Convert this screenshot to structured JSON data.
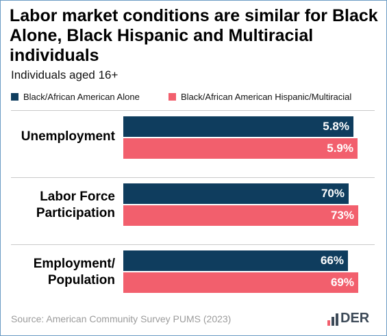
{
  "title": "Labor market conditions are similar for Black Alone, Black Hispanic and Multiracial individuals",
  "subtitle": "Individuals aged 16+",
  "source": "Source: American Community Survey PUMS (2023)",
  "logo": {
    "text": "DER",
    "icon": "bar-chart-icon",
    "color": "#3d4a58"
  },
  "colors": {
    "series1": "#0f3d5e",
    "series2": "#f25f6d"
  },
  "chart_data": {
    "type": "bar",
    "orientation": "horizontal",
    "categories": [
      "Unemployment",
      "Labor Force Participation",
      "Employment/ Population"
    ],
    "series": [
      {
        "name": "Black/African American Alone",
        "values": [
          5.8,
          70,
          66
        ],
        "labels": [
          "5.8%",
          "70%",
          "66%"
        ]
      },
      {
        "name": "Black/African American Hispanic/Multiracial",
        "values": [
          5.9,
          73,
          69
        ],
        "labels": [
          "5.9%",
          "73%",
          "69%"
        ]
      }
    ],
    "panel_max": [
      6.0,
      74,
      70
    ],
    "legend_position": "top",
    "grid": false
  }
}
